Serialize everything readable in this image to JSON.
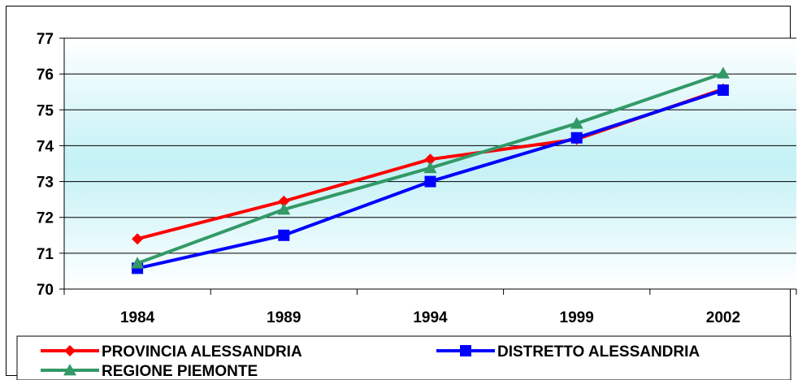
{
  "chart_data": {
    "type": "line",
    "title": "",
    "xlabel": "",
    "ylabel": "",
    "categories": [
      "1984",
      "1989",
      "1994",
      "1999",
      "2002"
    ],
    "ylim": [
      70,
      77
    ],
    "yticks": [
      70,
      71,
      72,
      73,
      74,
      75,
      76,
      77
    ],
    "grid": "horizontal",
    "legend_position": "bottom",
    "series": [
      {
        "name": "PROVINCIA ALESSANDRIA",
        "color": "#ff0000",
        "marker": "diamond",
        "values": [
          71.4,
          72.45,
          73.62,
          74.18,
          75.58
        ]
      },
      {
        "name": "DISTRETTO ALESSANDRIA",
        "color": "#0000ff",
        "marker": "square",
        "values": [
          70.58,
          71.5,
          73.0,
          74.22,
          75.55
        ]
      },
      {
        "name": "REGIONE PIEMONTE",
        "color": "#339966",
        "marker": "triangle",
        "values": [
          70.72,
          72.22,
          73.38,
          74.62,
          76.02
        ]
      }
    ]
  }
}
